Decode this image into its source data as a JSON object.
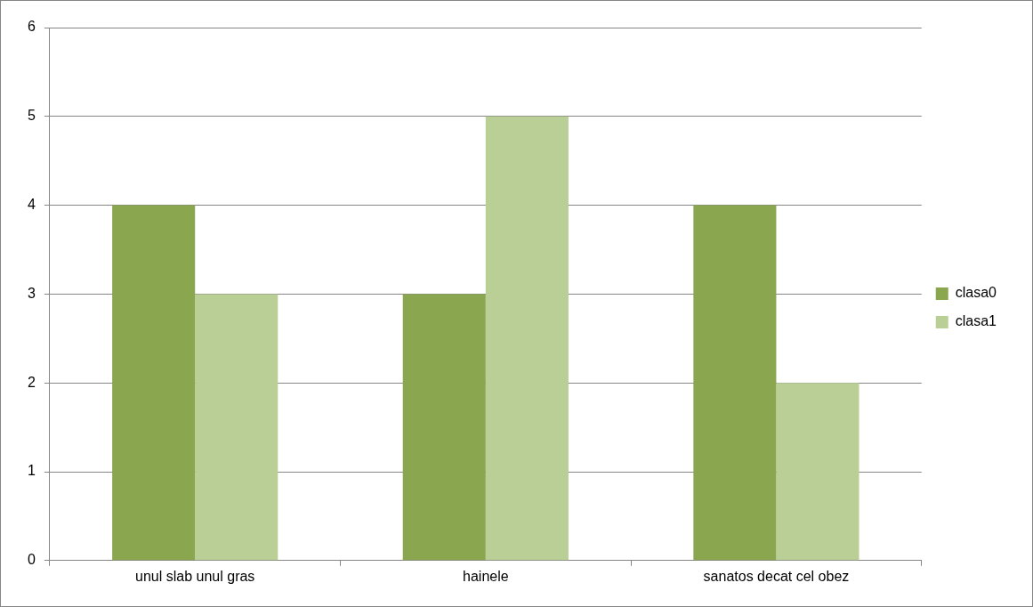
{
  "chart_data": {
    "type": "bar",
    "categories": [
      "unul slab unul gras",
      "hainele",
      "sanatos decat cel obez"
    ],
    "series": [
      {
        "name": "clasa0",
        "color": "#8aa64e",
        "values": [
          4,
          3,
          4
        ]
      },
      {
        "name": "clasa1",
        "color": "#bacf96",
        "values": [
          3,
          5,
          2
        ]
      }
    ],
    "ylim": [
      0,
      6
    ],
    "yticks": [
      0,
      1,
      2,
      3,
      4,
      5,
      6
    ],
    "grid": "y",
    "legend": "right"
  }
}
